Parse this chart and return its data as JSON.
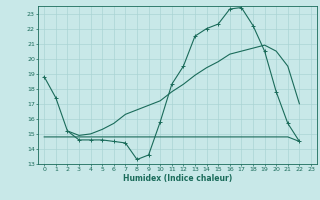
{
  "title": "",
  "xlabel": "Humidex (Indice chaleur)",
  "xlim": [
    -0.5,
    23.5
  ],
  "ylim": [
    13,
    23.5
  ],
  "yticks": [
    13,
    14,
    15,
    16,
    17,
    18,
    19,
    20,
    21,
    22,
    23
  ],
  "xticks": [
    0,
    1,
    2,
    3,
    4,
    5,
    6,
    7,
    8,
    9,
    10,
    11,
    12,
    13,
    14,
    15,
    16,
    17,
    18,
    19,
    20,
    21,
    22,
    23
  ],
  "bg_color": "#c8e8e8",
  "line_color": "#1a6b5a",
  "grid_color": "#aad4d4",
  "line1_x": [
    0,
    1,
    2,
    3,
    4,
    5,
    6,
    7,
    8,
    9,
    10,
    11,
    12,
    13,
    14,
    15,
    16,
    17,
    18,
    19,
    20,
    21,
    22
  ],
  "line1_y": [
    18.8,
    17.4,
    15.2,
    14.6,
    14.6,
    14.6,
    14.5,
    14.4,
    13.3,
    13.6,
    15.8,
    18.3,
    19.5,
    21.5,
    22.0,
    22.3,
    23.3,
    23.4,
    22.2,
    20.5,
    17.8,
    15.7,
    14.5
  ],
  "line2_x": [
    0,
    1,
    2,
    3,
    4,
    5,
    6,
    7,
    8,
    9,
    10,
    11,
    12,
    13,
    14,
    15,
    16,
    17,
    18,
    19,
    20,
    21,
    22
  ],
  "line2_y": [
    14.8,
    14.8,
    14.8,
    14.8,
    14.8,
    14.8,
    14.8,
    14.8,
    14.8,
    14.8,
    14.8,
    14.8,
    14.8,
    14.8,
    14.8,
    14.8,
    14.8,
    14.8,
    14.8,
    14.8,
    14.8,
    14.8,
    14.5
  ],
  "line3_x": [
    2,
    3,
    4,
    5,
    6,
    7,
    8,
    9,
    10,
    11,
    12,
    13,
    14,
    15,
    16,
    17,
    18,
    19,
    20,
    21,
    22
  ],
  "line3_y": [
    15.2,
    14.9,
    15.0,
    15.3,
    15.7,
    16.3,
    16.6,
    16.9,
    17.2,
    17.8,
    18.3,
    18.9,
    19.4,
    19.8,
    20.3,
    20.5,
    20.7,
    20.9,
    20.5,
    19.5,
    17.0
  ]
}
